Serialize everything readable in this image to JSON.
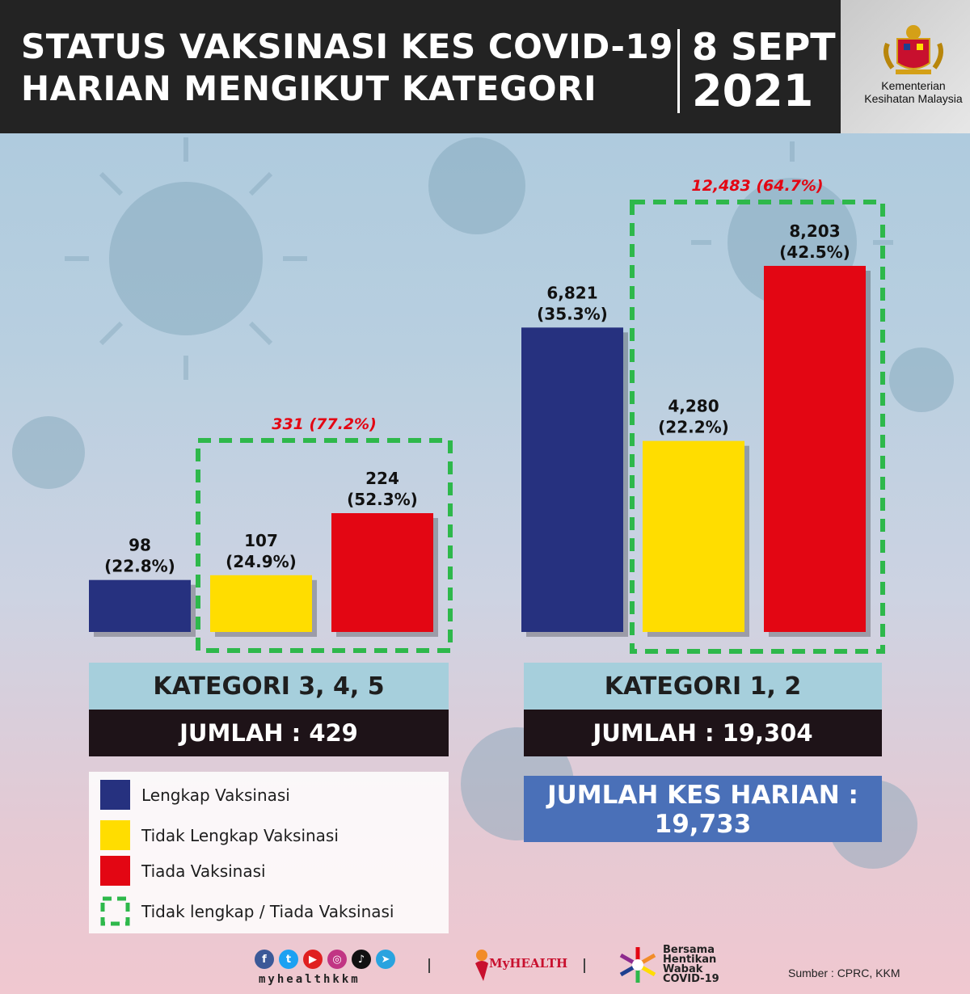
{
  "header": {
    "title_line1": "STATUS VAKSINASI KES COVID-19",
    "title_line2": "HARIAN MENGIKUT KATEGORI",
    "date_line1": "8 SEPT",
    "date_line2": "2021",
    "ministry": "Kementerian Kesihatan Malaysia"
  },
  "chart_data": [
    {
      "type": "bar",
      "categories": [
        "Lengkap Vaksinasi",
        "Tidak Lengkap Vaksinasi",
        "Tiada Vaksinasi"
      ],
      "values": [
        98,
        107,
        224
      ],
      "value_labels": [
        "98",
        "107",
        "224"
      ],
      "percent_labels": [
        "(22.8%)",
        "(24.9%)",
        "(52.3%)"
      ],
      "colors": [
        "#26317f",
        "#ffdd00",
        "#e30613"
      ],
      "group_label": "331 (77.2%)",
      "category_title": "KATEGORI 3, 4, 5",
      "total_label": "JUMLAH : 429"
    },
    {
      "type": "bar",
      "categories": [
        "Lengkap Vaksinasi",
        "Tidak Lengkap Vaksinasi",
        "Tiada Vaksinasi"
      ],
      "values": [
        6821,
        4280,
        8203
      ],
      "value_labels": [
        "6,821",
        "4,280",
        "8,203"
      ],
      "percent_labels": [
        "(35.3%)",
        "(22.2%)",
        "(42.5%)"
      ],
      "colors": [
        "#26317f",
        "#ffdd00",
        "#e30613"
      ],
      "group_label": "12,483 (64.7%)",
      "category_title": "KATEGORI 1, 2",
      "total_label": "JUMLAH : 19,304"
    }
  ],
  "daily_total": {
    "line1": "JUMLAH KES HARIAN :",
    "line2": "19,733"
  },
  "legend": [
    {
      "label": "Lengkap Vaksinasi",
      "color": "#26317f"
    },
    {
      "label": "Tidak Lengkap Vaksinasi",
      "color": "#ffdd00"
    },
    {
      "label": "Tiada Vaksinasi",
      "color": "#e30613"
    },
    {
      "label": "Tidak lengkap / Tiada Vaksinasi",
      "color": "#2eb84b"
    }
  ],
  "footer": {
    "handle": "myhealthkkm",
    "myhealth": "MyHEALTH",
    "bersama_line1": "Bersama",
    "bersama_line2": "Hentikan",
    "bersama_line3": "Wabak",
    "bersama_line4": "COVID-19",
    "source": "Sumber : CPRC, KKM"
  }
}
